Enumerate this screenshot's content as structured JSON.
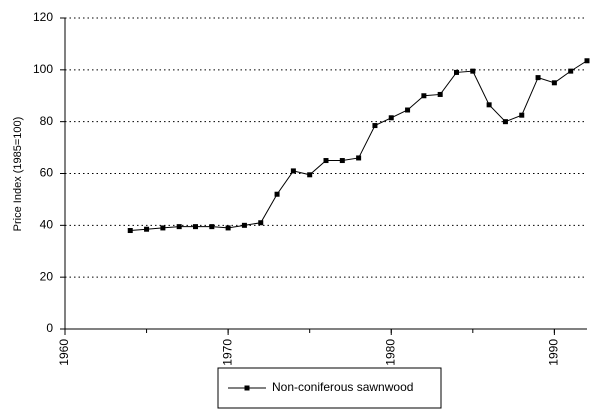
{
  "chart_data": {
    "type": "line",
    "y_label": "Price Index (1985=100)",
    "x": [
      1964,
      1965,
      1966,
      1967,
      1968,
      1969,
      1970,
      1971,
      1972,
      1973,
      1974,
      1975,
      1976,
      1977,
      1978,
      1979,
      1980,
      1981,
      1982,
      1983,
      1984,
      1985,
      1986,
      1987,
      1988,
      1989,
      1990,
      1991,
      1992
    ],
    "series": [
      {
        "name": "Non-coniferous sawnwood",
        "color": "#000000",
        "values": [
          38,
          38.5,
          39,
          39.5,
          39.5,
          39.5,
          39,
          40,
          41,
          52,
          61,
          59.5,
          65,
          65,
          66,
          78.5,
          81.5,
          84.5,
          90,
          90.5,
          99,
          99.5,
          86.5,
          80,
          82.5,
          97,
          95,
          99.5,
          103.5
        ]
      }
    ],
    "xlim": [
      1960,
      1992
    ],
    "xticks": [
      1960,
      1970,
      1980,
      1990
    ],
    "ylim": [
      0,
      120
    ],
    "yticks": [
      0,
      20,
      40,
      60,
      80,
      100,
      120
    ],
    "grid": true,
    "legend": "bottom"
  }
}
